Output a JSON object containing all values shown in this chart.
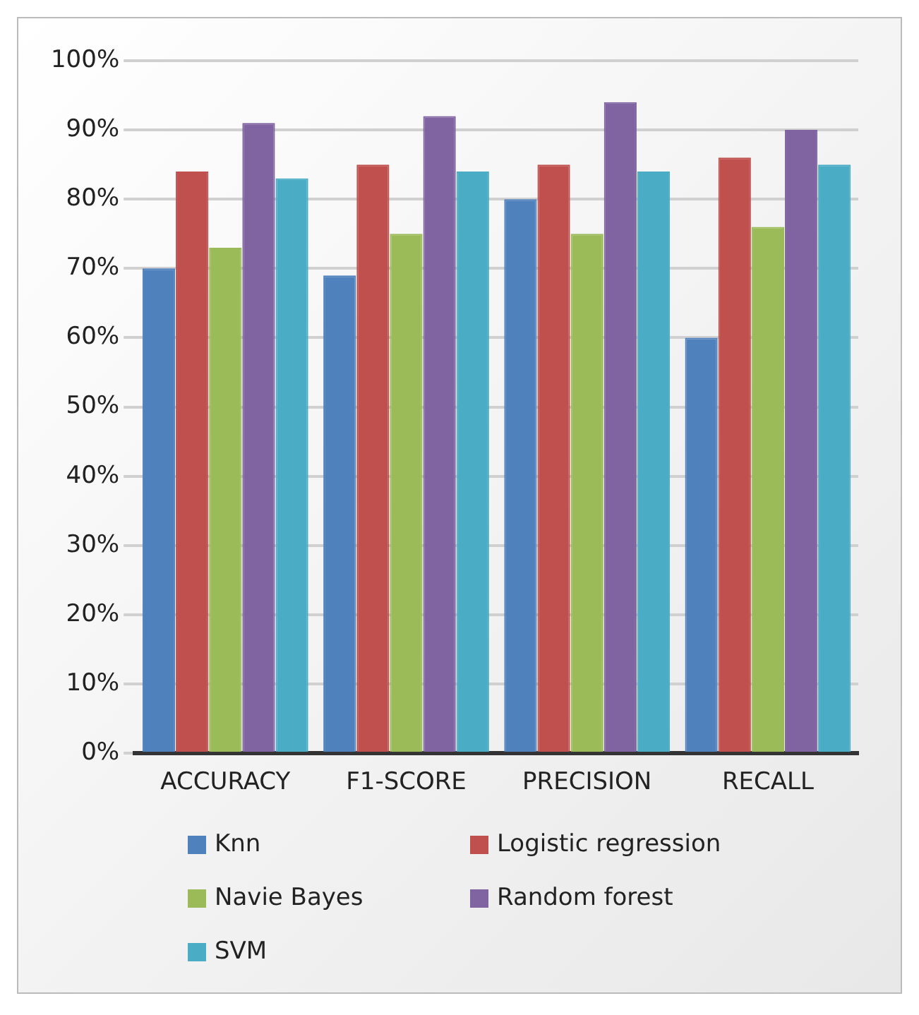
{
  "chart_data": {
    "type": "bar",
    "categories": [
      "ACCURACY",
      "F1-SCORE",
      "PRECISION",
      "RECALL"
    ],
    "series": [
      {
        "name": "Knn",
        "color": "#4f81bd",
        "values": [
          70,
          69,
          80,
          60
        ]
      },
      {
        "name": "Logistic regression",
        "color": "#c0504d",
        "values": [
          84,
          85,
          85,
          86
        ]
      },
      {
        "name": "Navie Bayes",
        "color": "#9bbb59",
        "values": [
          73,
          75,
          75,
          76
        ]
      },
      {
        "name": "Random forest",
        "color": "#8064a2",
        "values": [
          91,
          92,
          94,
          90
        ]
      },
      {
        "name": "SVM",
        "color": "#4bacc6",
        "values": [
          83,
          84,
          84,
          85
        ]
      }
    ],
    "ylim": [
      0,
      100
    ],
    "yticks": [
      {
        "value": 0,
        "label": "0%"
      },
      {
        "value": 10,
        "label": "10%"
      },
      {
        "value": 20,
        "label": "20%"
      },
      {
        "value": 30,
        "label": "30%"
      },
      {
        "value": 40,
        "label": "40%"
      },
      {
        "value": 50,
        "label": "50%"
      },
      {
        "value": 60,
        "label": "60%"
      },
      {
        "value": 70,
        "label": "70%"
      },
      {
        "value": 80,
        "label": "80%"
      },
      {
        "value": 90,
        "label": "90%"
      },
      {
        "value": 100,
        "label": "100%"
      }
    ],
    "grid": "y",
    "legend": "bottom"
  }
}
